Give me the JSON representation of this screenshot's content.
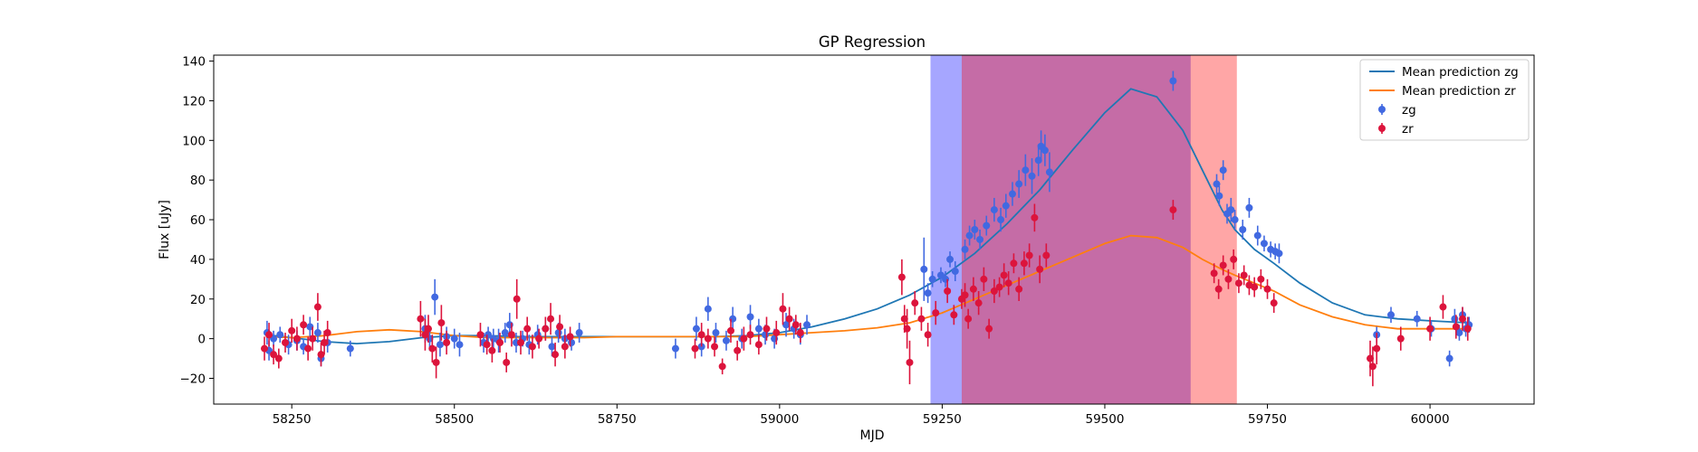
{
  "chart_data": {
    "type": "scatter",
    "title": "GP Regression",
    "xlabel": "MJD",
    "ylabel": "Flux [uJy]",
    "xlim": [
      58130,
      60160
    ],
    "ylim": [
      -33,
      143
    ],
    "xticks": [
      58250,
      58500,
      58750,
      59000,
      59250,
      59500,
      59750,
      60000
    ],
    "yticks": [
      -20,
      0,
      20,
      40,
      60,
      80,
      100,
      120,
      140
    ],
    "grid": false,
    "legend_position": "top-right",
    "shaded_regions": [
      {
        "x0": 59232,
        "x1": 59632,
        "color": "#0000ff",
        "opacity": 0.35
      },
      {
        "x0": 59280,
        "x1": 59703,
        "color": "#ff0000",
        "opacity": 0.35
      }
    ],
    "lines": [
      {
        "name": "Mean prediction zg",
        "color": "#1f77b4",
        "x": [
          58210,
          58250,
          58300,
          58350,
          58400,
          58450,
          58500,
          58550,
          58600,
          58650,
          58700,
          58750,
          58800,
          58850,
          58900,
          58950,
          59000,
          59050,
          59100,
          59150,
          59200,
          59250,
          59300,
          59350,
          59400,
          59450,
          59500,
          59540,
          59580,
          59620,
          59650,
          59680,
          59700,
          59730,
          59760,
          59800,
          59850,
          59900,
          59950,
          60000,
          60060
        ],
        "y": [
          2,
          0.5,
          -1.5,
          -2.5,
          -1.5,
          0.5,
          1.5,
          1.5,
          1,
          1,
          1,
          1,
          1,
          1,
          1,
          1.5,
          3,
          6,
          10,
          15,
          22,
          31,
          43,
          58,
          75,
          95,
          114,
          126,
          122,
          105,
          85,
          65,
          55,
          45,
          38,
          28,
          18,
          12,
          10,
          9,
          8
        ]
      },
      {
        "name": "Mean prediction zr",
        "color": "#ff7f0e",
        "x": [
          58210,
          58250,
          58300,
          58350,
          58400,
          58450,
          58500,
          58550,
          58600,
          58650,
          58700,
          58750,
          58800,
          58850,
          58900,
          58950,
          59000,
          59050,
          59100,
          59150,
          59200,
          59250,
          59300,
          59350,
          59400,
          59450,
          59500,
          59540,
          59580,
          59620,
          59650,
          59680,
          59700,
          59730,
          59760,
          59800,
          59850,
          59900,
          59950,
          60000,
          60060
        ],
        "y": [
          1,
          0.5,
          1.5,
          3.5,
          4.5,
          3.5,
          1.5,
          0.5,
          0.5,
          0.5,
          0.5,
          1,
          1,
          1,
          1,
          1,
          2,
          3,
          4,
          5.5,
          8,
          13,
          20,
          27,
          34,
          41,
          48,
          52,
          51,
          46,
          40,
          35,
          32,
          28,
          24,
          17,
          11,
          7,
          5,
          5,
          5
        ]
      }
    ],
    "series": [
      {
        "name": "zg",
        "color": "#4169e1",
        "x": [
          58212,
          58215,
          58222,
          58232,
          58245,
          58258,
          58268,
          58278,
          58290,
          58295,
          58305,
          58340,
          58455,
          58462,
          58470,
          58478,
          58488,
          58500,
          58508,
          58545,
          58552,
          58560,
          58568,
          58578,
          58585,
          58595,
          58605,
          58615,
          58628,
          58640,
          58650,
          58660,
          58670,
          58680,
          58692,
          58840,
          58872,
          58880,
          58890,
          58902,
          58918,
          58928,
          58942,
          58955,
          58968,
          58978,
          58992,
          59010,
          59022,
          59032,
          59042,
          59222,
          59228,
          59235,
          59248,
          59255,
          59262,
          59270,
          59285,
          59292,
          59300,
          59308,
          59318,
          59330,
          59340,
          59348,
          59358,
          59368,
          59378,
          59388,
          59398,
          59402,
          59408,
          59415,
          59605,
          59672,
          59676,
          59682,
          59688,
          59694,
          59700,
          59712,
          59722,
          59735,
          59745,
          59755,
          59762,
          59768,
          59918,
          59940,
          59980,
          60002,
          60030,
          60038,
          60045,
          60050,
          60055,
          60060
        ],
        "y": [
          3,
          -6,
          0,
          2,
          -3,
          -1,
          -4,
          6,
          3,
          -10,
          -2,
          -5,
          5,
          0,
          21,
          -3,
          1,
          0,
          -3,
          -2,
          2,
          0,
          -1,
          3,
          7,
          -2,
          0,
          -3,
          2,
          5,
          -4,
          3,
          0,
          -2,
          3,
          -5,
          5,
          -4,
          15,
          3,
          -1,
          10,
          0,
          11,
          5,
          2,
          0,
          7,
          5,
          2,
          7,
          35,
          23,
          30,
          32,
          30,
          40,
          34,
          45,
          52,
          55,
          50,
          57,
          65,
          60,
          67,
          73,
          78,
          85,
          82,
          90,
          97,
          95,
          84,
          130,
          78,
          72,
          85,
          63,
          65,
          60,
          55,
          66,
          52,
          48,
          45,
          44,
          43,
          2,
          12,
          10,
          5,
          -10,
          10,
          3,
          12,
          5,
          7
        ],
        "err": [
          6,
          5,
          4,
          4,
          5,
          5,
          4,
          5,
          5,
          4,
          5,
          4,
          7,
          6,
          9,
          6,
          5,
          5,
          6,
          5,
          4,
          5,
          6,
          5,
          6,
          5,
          4,
          5,
          5,
          6,
          5,
          5,
          5,
          4,
          5,
          5,
          6,
          5,
          6,
          5,
          5,
          6,
          5,
          6,
          5,
          5,
          5,
          6,
          5,
          5,
          5,
          16,
          5,
          4,
          4,
          4,
          4,
          5,
          5,
          5,
          5,
          5,
          5,
          6,
          6,
          6,
          6,
          7,
          8,
          9,
          8,
          8,
          8,
          10,
          5,
          5,
          5,
          5,
          5,
          6,
          5,
          5,
          5,
          5,
          4,
          4,
          4,
          5,
          4,
          4,
          4,
          4,
          4,
          5,
          4,
          4,
          4,
          4
        ]
      },
      {
        "name": "zr",
        "color": "#dc143c",
        "x": [
          58208,
          58215,
          58222,
          58230,
          58240,
          58250,
          58258,
          58268,
          58275,
          58282,
          58290,
          58295,
          58300,
          58305,
          58448,
          58455,
          58460,
          58466,
          58472,
          58480,
          58488,
          58540,
          58550,
          58558,
          58570,
          58580,
          58588,
          58596,
          58602,
          58612,
          58620,
          58630,
          58640,
          58648,
          58655,
          58662,
          58670,
          58678,
          58870,
          58880,
          58890,
          58900,
          58912,
          58925,
          58935,
          58945,
          58955,
          58968,
          58980,
          58995,
          59005,
          59015,
          59025,
          59032,
          59188,
          59192,
          59196,
          59200,
          59208,
          59218,
          59228,
          59240,
          59258,
          59268,
          59280,
          59285,
          59290,
          59298,
          59306,
          59314,
          59322,
          59330,
          59338,
          59345,
          59352,
          59360,
          59368,
          59376,
          59384,
          59392,
          59400,
          59410,
          59605,
          59668,
          59675,
          59682,
          59690,
          59698,
          59706,
          59714,
          59722,
          59730,
          59740,
          59750,
          59760,
          59908,
          59912,
          59918,
          59955,
          60000,
          60020,
          60040,
          60050,
          60058
        ],
        "y": [
          -5,
          2,
          -8,
          -10,
          -2,
          4,
          0,
          7,
          -5,
          0,
          16,
          -8,
          -2,
          3,
          10,
          2,
          5,
          -5,
          -12,
          8,
          -2,
          2,
          -3,
          -6,
          -2,
          -12,
          2,
          20,
          -2,
          5,
          -4,
          0,
          5,
          10,
          -8,
          6,
          -4,
          1,
          -5,
          2,
          0,
          -4,
          -14,
          4,
          -6,
          0,
          2,
          -3,
          5,
          3,
          15,
          10,
          7,
          3,
          31,
          10,
          5,
          -12,
          18,
          10,
          2,
          13,
          24,
          12,
          20,
          22,
          10,
          25,
          18,
          30,
          5,
          24,
          26,
          32,
          28,
          38,
          25,
          38,
          42,
          61,
          35,
          42,
          65,
          33,
          25,
          37,
          30,
          40,
          28,
          32,
          27,
          26,
          30,
          25,
          18,
          -10,
          -14,
          -5,
          0,
          5,
          16,
          6,
          10,
          5
        ],
        "err": [
          6,
          6,
          5,
          5,
          5,
          6,
          6,
          5,
          6,
          6,
          7,
          6,
          6,
          6,
          9,
          8,
          7,
          7,
          8,
          9,
          6,
          6,
          5,
          6,
          5,
          5,
          6,
          10,
          6,
          6,
          6,
          5,
          6,
          8,
          6,
          6,
          6,
          5,
          5,
          6,
          5,
          5,
          4,
          6,
          5,
          6,
          5,
          5,
          6,
          6,
          8,
          6,
          5,
          5,
          9,
          7,
          10,
          11,
          6,
          6,
          6,
          6,
          6,
          5,
          5,
          6,
          5,
          6,
          6,
          6,
          5,
          6,
          5,
          6,
          6,
          5,
          6,
          6,
          6,
          7,
          7,
          6,
          5,
          5,
          5,
          5,
          5,
          5,
          5,
          5,
          5,
          5,
          5,
          5,
          5,
          9,
          10,
          8,
          6,
          6,
          6,
          6,
          6,
          6
        ]
      }
    ]
  }
}
